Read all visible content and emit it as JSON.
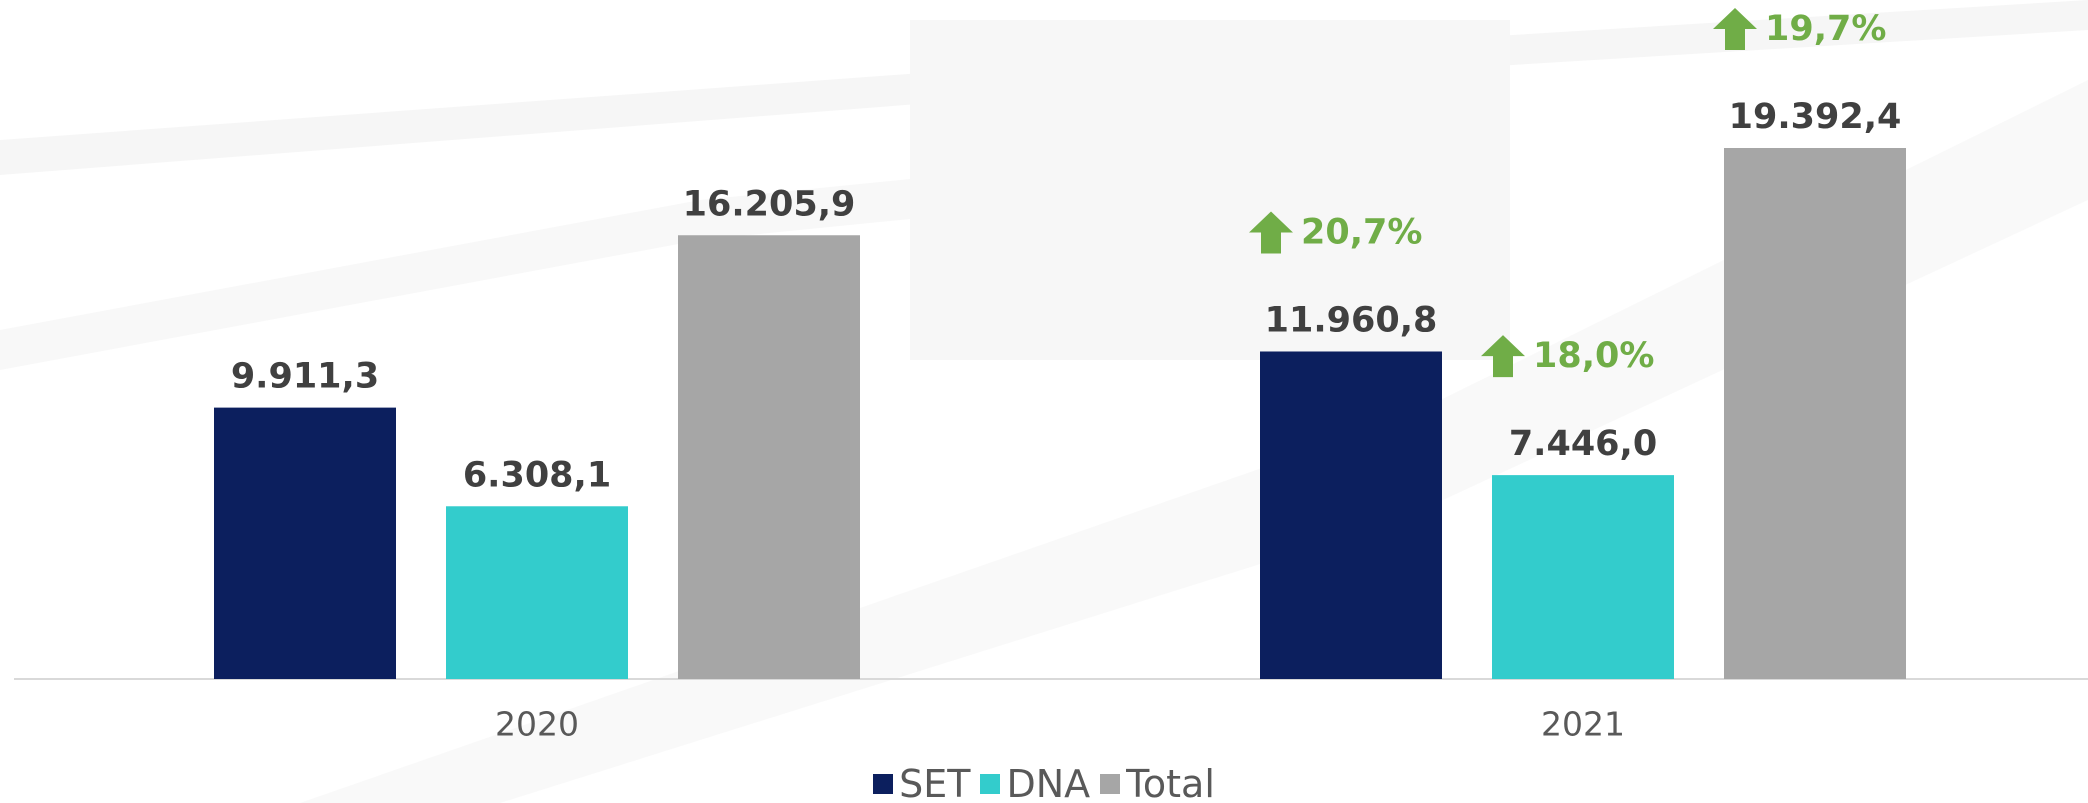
{
  "chart_data": {
    "type": "bar",
    "categories": [
      "2020",
      "2021"
    ],
    "series": [
      {
        "name": "SET",
        "color": "#0c1f5e",
        "values": [
          9911.3,
          11960.8
        ],
        "value_labels": [
          "9.911,3",
          "11.960,8"
        ],
        "growth_labels": [
          null,
          "20,7%"
        ]
      },
      {
        "name": "DNA",
        "color": "#33cccc",
        "values": [
          6308.1,
          7446.0
        ],
        "value_labels": [
          "6.308,1",
          "7.446,0"
        ],
        "growth_labels": [
          null,
          "18,0%"
        ]
      },
      {
        "name": "Total",
        "color": "#a6a6a6",
        "values": [
          16205.9,
          19392.4
        ],
        "value_labels": [
          "16.205,9",
          "19.392,4"
        ],
        "growth_labels": [
          null,
          "19,7%"
        ]
      }
    ],
    "legend": "bottom"
  }
}
